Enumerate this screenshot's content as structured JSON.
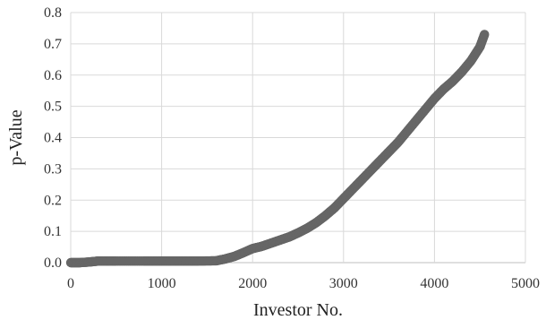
{
  "chart_data": {
    "type": "scatter",
    "title": "",
    "xlabel": "Investor No.",
    "ylabel": "p-Value",
    "xlim": [
      0,
      5000
    ],
    "ylim": [
      0,
      0.8
    ],
    "x_ticks": [
      "0",
      "1000",
      "2000",
      "3000",
      "4000",
      "5000"
    ],
    "y_ticks": [
      "0.0",
      "0.1",
      "0.2",
      "0.3",
      "0.4",
      "0.5",
      "0.6",
      "0.7",
      "0.8"
    ],
    "grid": true,
    "legend": "none",
    "marker_color": "#666666",
    "series": [
      {
        "points": [
          [
            0,
            0.0
          ],
          [
            100,
            0.0
          ],
          [
            200,
            0.002
          ],
          [
            300,
            0.005
          ],
          [
            500,
            0.005
          ],
          [
            800,
            0.005
          ],
          [
            1000,
            0.005
          ],
          [
            1200,
            0.005
          ],
          [
            1400,
            0.005
          ],
          [
            1600,
            0.006
          ],
          [
            1700,
            0.012
          ],
          [
            1800,
            0.02
          ],
          [
            1900,
            0.032
          ],
          [
            2000,
            0.045
          ],
          [
            2100,
            0.052
          ],
          [
            2200,
            0.062
          ],
          [
            2300,
            0.072
          ],
          [
            2400,
            0.082
          ],
          [
            2500,
            0.095
          ],
          [
            2600,
            0.11
          ],
          [
            2700,
            0.128
          ],
          [
            2800,
            0.15
          ],
          [
            2900,
            0.175
          ],
          [
            3000,
            0.205
          ],
          [
            3100,
            0.235
          ],
          [
            3200,
            0.265
          ],
          [
            3300,
            0.295
          ],
          [
            3400,
            0.325
          ],
          [
            3500,
            0.355
          ],
          [
            3600,
            0.385
          ],
          [
            3700,
            0.42
          ],
          [
            3800,
            0.455
          ],
          [
            3900,
            0.49
          ],
          [
            4000,
            0.525
          ],
          [
            4100,
            0.555
          ],
          [
            4200,
            0.58
          ],
          [
            4300,
            0.61
          ],
          [
            4400,
            0.645
          ],
          [
            4500,
            0.69
          ],
          [
            4550,
            0.73
          ]
        ]
      }
    ]
  }
}
